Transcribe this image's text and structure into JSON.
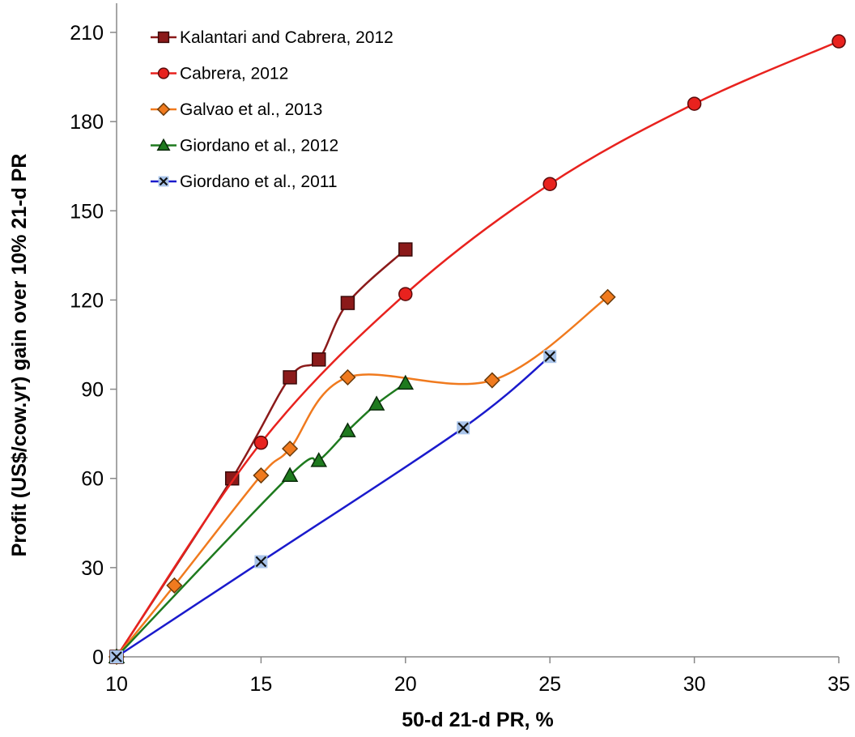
{
  "chart_data": {
    "type": "line",
    "xlabel": "50-d 21-d PR, %",
    "ylabel": "Profit (US$/cow.yr) gain over 10% 21-d PR",
    "xlim": [
      10,
      35
    ],
    "ylim": [
      0,
      210
    ],
    "xticks": [
      "10",
      "15",
      "20",
      "25",
      "30",
      "35"
    ],
    "yticks": [
      "0",
      "30",
      "60",
      "90",
      "120",
      "150",
      "180",
      "210"
    ],
    "grid": false,
    "legend_position": "top-left",
    "series": [
      {
        "name": "Kalantari and Cabrera, 2012",
        "color": "#8B1A1A",
        "marker": "square",
        "x": [
          10,
          14,
          16,
          17,
          18,
          20
        ],
        "y": [
          0,
          60,
          94,
          100,
          119,
          137
        ]
      },
      {
        "name": "Cabrera, 2012",
        "color": "#E8221E",
        "marker": "circle",
        "x": [
          10,
          15,
          20,
          25,
          30,
          35
        ],
        "y": [
          0,
          72,
          122,
          159,
          186,
          207
        ]
      },
      {
        "name": "Galvao et al., 2013",
        "color": "#F07A1E",
        "marker": "diamond",
        "x": [
          10,
          12,
          15,
          16,
          18,
          23,
          27
        ],
        "y": [
          0,
          24,
          61,
          70,
          94,
          93,
          121
        ]
      },
      {
        "name": "Giordano et al., 2012",
        "color": "#1E7A1E",
        "marker": "triangle",
        "x": [
          10,
          16,
          17,
          18,
          19,
          20
        ],
        "y": [
          0,
          61,
          66,
          76,
          85,
          92
        ]
      },
      {
        "name": "Giordano et al., 2011",
        "color": "#1A1ACC",
        "marker": "x",
        "x": [
          10,
          15,
          22,
          25
        ],
        "y": [
          0,
          32,
          77,
          101
        ]
      }
    ]
  }
}
